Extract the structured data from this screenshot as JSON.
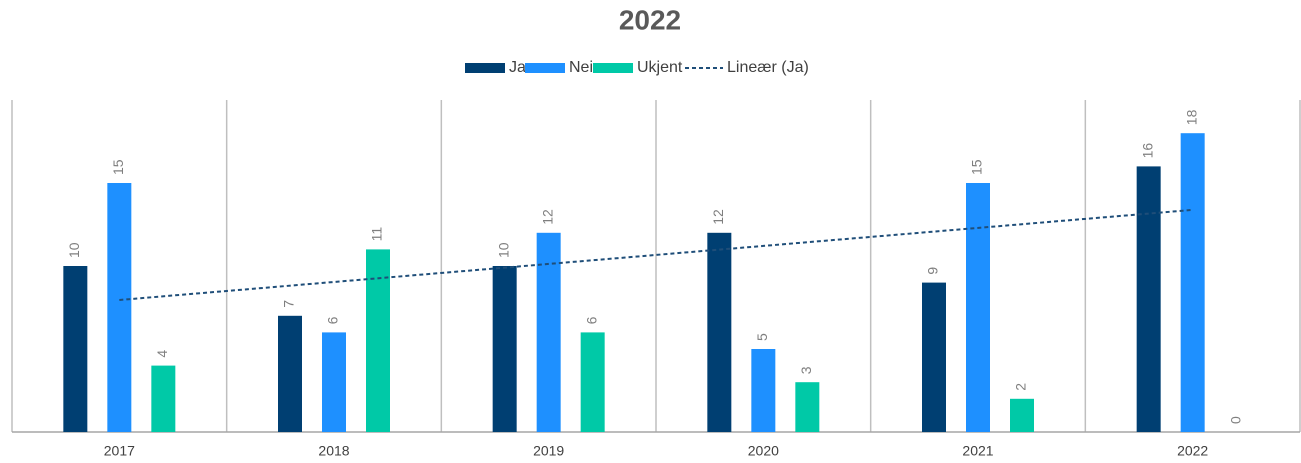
{
  "chart_data": {
    "type": "bar",
    "title": "2022",
    "categories": [
      "2017",
      "2018",
      "2019",
      "2020",
      "2021",
      "2022"
    ],
    "series": [
      {
        "name": "Ja",
        "color": "#003f72",
        "values": [
          10,
          7,
          10,
          12,
          9,
          16
        ]
      },
      {
        "name": "Nei",
        "color": "#1e90ff",
        "values": [
          15,
          6,
          12,
          5,
          15,
          18
        ]
      },
      {
        "name": "Ukjent",
        "color": "#00c9a7",
        "values": [
          4,
          11,
          6,
          3,
          2,
          0
        ]
      }
    ],
    "trendline": {
      "name": "Lineær (Ja)",
      "series": 0,
      "color": "#1f4e79"
    },
    "ylim": [
      0,
      20
    ],
    "legend": "top"
  }
}
